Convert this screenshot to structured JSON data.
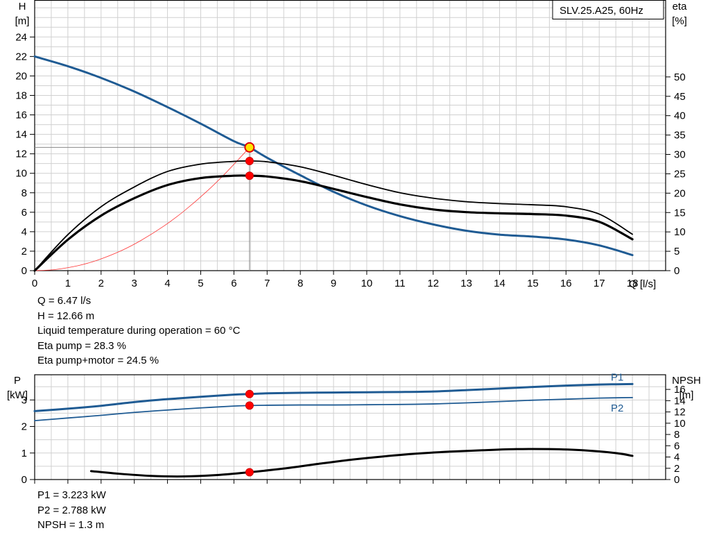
{
  "chart_data": [
    {
      "type": "line",
      "title": "SLV.25.A25, 60Hz",
      "xlabel": "Q [l/s]",
      "ylabel_left": [
        "H",
        "[m]"
      ],
      "ylabel_right": [
        "eta",
        "[%]"
      ],
      "xlim": [
        0,
        19
      ],
      "xticks": [
        0,
        1,
        2,
        3,
        4,
        5,
        6,
        7,
        8,
        9,
        10,
        11,
        12,
        13,
        14,
        15,
        16,
        17,
        18
      ],
      "ylim": [
        0,
        27.8
      ],
      "yticks_left": [
        0,
        2,
        4,
        6,
        8,
        10,
        12,
        14,
        16,
        18,
        20,
        22,
        24
      ],
      "yticks_right": [
        0,
        5,
        10,
        15,
        20,
        25,
        30,
        35,
        40,
        45,
        50
      ],
      "grid": true,
      "series": [
        {
          "color": "#1f5b93",
          "axis": "H",
          "x": [
            0,
            1,
            2,
            3,
            4,
            5,
            6,
            6.47,
            7,
            8,
            9,
            10,
            11,
            12,
            13,
            14,
            15,
            16,
            17,
            18
          ],
          "y": [
            22.0,
            21.0,
            19.8,
            18.4,
            16.8,
            15.1,
            13.3,
            12.66,
            11.6,
            9.8,
            8.1,
            6.7,
            5.6,
            4.75,
            4.1,
            3.7,
            3.5,
            3.2,
            2.6,
            1.6
          ]
        },
        {
          "color": "#000000",
          "axis": "eta",
          "x": [
            0,
            1,
            2,
            3,
            4,
            5,
            6,
            6.47,
            7,
            8,
            9,
            10,
            11,
            12,
            13,
            14,
            15,
            16,
            17,
            18
          ],
          "y": [
            0,
            9.3,
            16.5,
            21.6,
            25.6,
            27.5,
            28.2,
            28.3,
            28.1,
            26.8,
            24.6,
            22.2,
            20.1,
            18.7,
            17.8,
            17.3,
            17.0,
            16.5,
            14.6,
            9.4
          ]
        },
        {
          "color": "#000000",
          "axis": "eta",
          "x": [
            0,
            1,
            2,
            3,
            4,
            5,
            6,
            6.47,
            7,
            8,
            9,
            10,
            11,
            12,
            13,
            14,
            15,
            16,
            17,
            18
          ],
          "y": [
            0,
            8.0,
            14.2,
            18.7,
            22.1,
            23.9,
            24.5,
            24.5,
            24.3,
            23.1,
            21.1,
            19.0,
            17.1,
            15.8,
            15.1,
            14.8,
            14.6,
            14.2,
            12.6,
            8.1
          ]
        },
        {
          "color": "#ff3333",
          "axis": "H",
          "x": [
            0,
            0.6,
            1.3,
            1.9,
            2.6,
            3.2,
            3.9,
            4.5,
            5.2,
            5.8,
            6.47
          ],
          "y": [
            0,
            0.11,
            0.51,
            1.09,
            2.04,
            3.1,
            4.6,
            6.13,
            8.19,
            10.2,
            12.66
          ]
        }
      ],
      "operating_point": {
        "x": 6.47,
        "y": 12.66
      },
      "markers": [
        {
          "x": 6.47,
          "eta": 28.3
        },
        {
          "x": 6.47,
          "eta": 24.5
        }
      ]
    },
    {
      "type": "line",
      "ylabel_left": [
        "P",
        "[kW]"
      ],
      "ylabel_right": [
        "NPSH",
        "[m]"
      ],
      "xlim": [
        0,
        19
      ],
      "ylim": [
        0,
        3.95
      ],
      "yticks_left": [
        0,
        1,
        2,
        3
      ],
      "yticks_right": [
        0,
        2,
        4,
        6,
        8,
        10,
        12,
        14,
        16
      ],
      "npsh_range": [
        0,
        18.6
      ],
      "grid": true,
      "series": [
        {
          "name": "P1",
          "color": "#1f5b93",
          "axis": "P",
          "x": [
            0,
            1,
            2,
            3,
            4,
            5,
            6,
            6.47,
            7,
            8,
            9,
            10,
            11,
            12,
            13,
            14,
            15,
            16,
            17,
            18
          ],
          "y": [
            2.58,
            2.67,
            2.78,
            2.92,
            3.03,
            3.12,
            3.2,
            3.223,
            3.25,
            3.27,
            3.28,
            3.29,
            3.3,
            3.32,
            3.37,
            3.43,
            3.49,
            3.54,
            3.58,
            3.6
          ]
        },
        {
          "name": "P2",
          "color": "#1f5b93",
          "axis": "P",
          "x": [
            0,
            1,
            2,
            3,
            4,
            5,
            6,
            6.47,
            7,
            8,
            9,
            10,
            11,
            12,
            13,
            14,
            15,
            16,
            17,
            18
          ],
          "y": [
            2.22,
            2.32,
            2.42,
            2.53,
            2.62,
            2.7,
            2.77,
            2.788,
            2.8,
            2.81,
            2.81,
            2.82,
            2.83,
            2.85,
            2.89,
            2.94,
            2.99,
            3.03,
            3.07,
            3.09
          ]
        },
        {
          "color": "#000000",
          "axis": "NPSH",
          "x": [
            1.7,
            2.5,
            3.5,
            4.5,
            5.5,
            6.47,
            7.5,
            8.5,
            9.5,
            10.5,
            11.5,
            12.5,
            13.5,
            14.5,
            15.5,
            16.5,
            17.5,
            18
          ],
          "y": [
            1.5,
            1.05,
            0.65,
            0.55,
            0.8,
            1.3,
            1.95,
            2.75,
            3.5,
            4.1,
            4.6,
            4.95,
            5.2,
            5.4,
            5.4,
            5.2,
            4.7,
            4.2
          ]
        }
      ],
      "markers": [
        {
          "x": 6.47,
          "p": 3.223
        },
        {
          "x": 6.47,
          "p": 2.788
        },
        {
          "x": 6.47,
          "npsh": 1.3
        }
      ]
    }
  ],
  "info_top": [
    "Q = 6.47 l/s",
    "H = 12.66 m",
    "Liquid temperature during operation = 60 °C",
    "Eta pump = 28.3 %",
    "Eta pump+motor = 24.5 %"
  ],
  "info_bottom": [
    "P1 = 3.223 kW",
    "P2 = 2.788 kW",
    "NPSH = 1.3 m"
  ]
}
